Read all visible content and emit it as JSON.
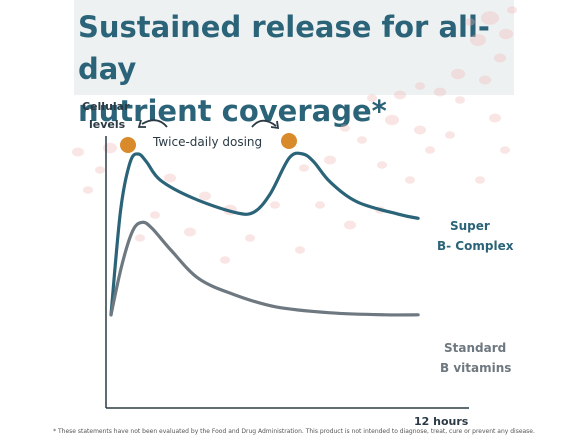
{
  "title_line1": "Sustained release for all-day",
  "title_line2": "nutrient coverage*",
  "colors": {
    "title": "#2b6478",
    "super_line": "#2b6478",
    "standard_line": "#6e7880",
    "tablet": "#d98a2b",
    "axis": "#2b3a44",
    "blood_cells": "#f2b4b4"
  },
  "icons": [
    "blood-cells-background",
    "tablet-icon",
    "curved-arrow-icon"
  ],
  "chart_data": {
    "type": "line",
    "ylabel": "Cellular levels",
    "xlabel": "12 hours",
    "annotation": "Twice-daily dosing",
    "x_range": [
      0,
      12
    ],
    "y_range": [
      0,
      100
    ],
    "series": [
      {
        "name": "Super B- Complex",
        "name_lines": [
          "Super",
          "B- Complex"
        ],
        "x": [
          0.0,
          0.35,
          0.7,
          1.0,
          1.3,
          1.8,
          3.0,
          4.5,
          5.2,
          5.8,
          6.5,
          7.0,
          7.4,
          8.0,
          9.0,
          10.5,
          11.2
        ],
        "y": [
          20,
          72,
          96,
          100,
          96,
          87,
          78,
          71,
          71,
          80,
          98,
          100,
          96,
          86,
          76,
          70,
          68
        ]
      },
      {
        "name": "Standard B vitamins",
        "name_lines": [
          "Standard",
          "B vitamins"
        ],
        "x": [
          0.0,
          0.4,
          0.8,
          1.15,
          1.5,
          2.2,
          3.2,
          4.5,
          6.0,
          8.0,
          10.0,
          11.2
        ],
        "y": [
          20,
          45,
          62,
          66,
          63,
          52,
          38,
          30,
          24,
          21,
          20,
          20
        ]
      }
    ]
  },
  "footnote": "* These statements have not been evaluated by the Food and Drug Administration. This product is not intended to diagnose, treat, cure or prevent any disease."
}
